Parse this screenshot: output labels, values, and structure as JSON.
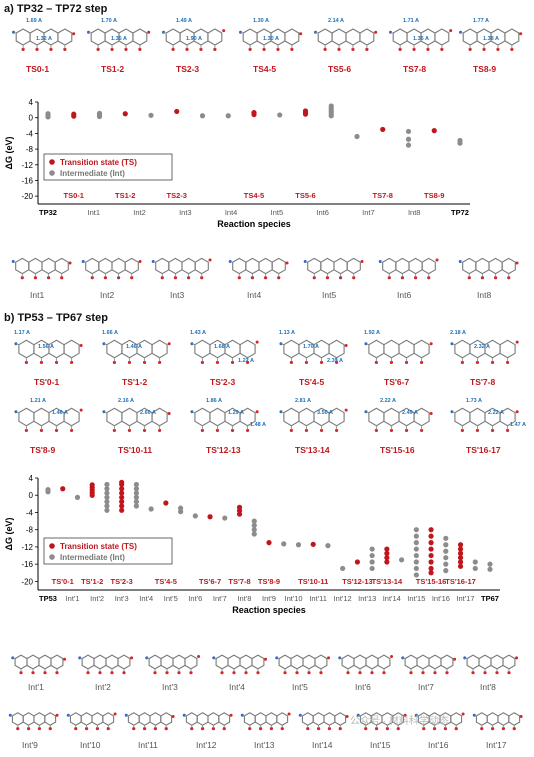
{
  "panel_a": {
    "title": "a) TP32 – TP72 step",
    "ts_row": [
      {
        "label": "TS0-1",
        "d": [
          "1.69 A",
          "1.32 A"
        ]
      },
      {
        "label": "TS1-2",
        "d": [
          "1.70 A",
          "1.35 A"
        ]
      },
      {
        "label": "TS2-3",
        "d": [
          "1.49 A",
          "1.90 A"
        ]
      },
      {
        "label": "TS4-5",
        "d": [
          "1.30 A",
          "1.30 A"
        ]
      },
      {
        "label": "TS5-6",
        "d": [
          "2.14 A"
        ]
      },
      {
        "label": "TS7-8",
        "d": [
          "1.71 A",
          "1.36 A"
        ]
      },
      {
        "label": "TS8-9",
        "d": [
          "1.77 A",
          "1.38 A"
        ]
      }
    ],
    "int_row": [
      "Int1",
      "Int2",
      "Int3",
      "Int4",
      "Int5",
      "Int6",
      "Int8"
    ]
  },
  "panel_b": {
    "title": "b) TP53 – TP67 step",
    "ts_row1": [
      {
        "label": "TS'0-1",
        "d": [
          "1.17 A",
          "1.56 A"
        ]
      },
      {
        "label": "TS'1-2",
        "d": [
          "1.66 A",
          "1.46 A"
        ]
      },
      {
        "label": "TS'2-3",
        "d": [
          "1.43 A",
          "1.68 A",
          "1.22 A"
        ]
      },
      {
        "label": "TS'4-5",
        "d": [
          "1.13 A",
          "1.70 A",
          "2.39 A"
        ]
      },
      {
        "label": "TS'6-7",
        "d": [
          "1.92 A"
        ]
      },
      {
        "label": "TS'7-8",
        "d": [
          "2.18 A",
          "2.32 A"
        ]
      }
    ],
    "ts_row2": [
      {
        "label": "TS'8-9",
        "d": [
          "1.21 A",
          "1.46 A"
        ]
      },
      {
        "label": "TS'10-11",
        "d": [
          "2.16 A",
          "2.60 A"
        ]
      },
      {
        "label": "TS'12-13",
        "d": [
          "1.86 A",
          "1.29 A",
          "1.48 A"
        ]
      },
      {
        "label": "TS'13-14",
        "d": [
          "2.81 A",
          "3.50 A"
        ]
      },
      {
        "label": "TS'15-16",
        "d": [
          "2.22 A",
          "2.49 A"
        ]
      },
      {
        "label": "TS'16-17",
        "d": [
          "1.73 A",
          "2.22 A",
          "1.47 A"
        ]
      }
    ],
    "int_row1": [
      "Int'1",
      "Int'2",
      "Int'3",
      "Int'4",
      "Int'5",
      "Int'6",
      "Int'7",
      "Int'8"
    ],
    "int_row2": [
      "Int'9",
      "Int'10",
      "Int'11",
      "Int'12",
      "Int'13",
      "Int'14",
      "Int'15",
      "Int'16",
      "Int'17"
    ]
  },
  "chart_data": [
    {
      "type": "scatter",
      "ylabel": "ΔG (eV)",
      "xlabel": "Reaction species",
      "ylim": [
        -22,
        4
      ],
      "yticks": [
        4,
        0,
        -4,
        -8,
        -12,
        -16,
        -20
      ],
      "legend": {
        "placement": "bottom-left",
        "ts": "Transition state (TS)",
        "int": "Intermediate (Int)"
      },
      "colors": {
        "ts": "#c0161b",
        "int": "#8c8c8c"
      },
      "ts_x_labels": [
        "TS0-1",
        "TS1-2",
        "TS2-3",
        "TS4-5",
        "TS5-6",
        "TS7-8",
        "TS8-9"
      ],
      "x_labels": [
        "TP32",
        "Int1",
        "Int2",
        "Int3",
        "Int4",
        "Int5",
        "Int6",
        "Int7",
        "Int8",
        "TP72"
      ],
      "points": [
        {
          "kind": "int",
          "x": 0,
          "y": [
            0.2,
            0.6,
            1.0
          ]
        },
        {
          "kind": "ts",
          "x": 1,
          "y": [
            0.4,
            0.9
          ]
        },
        {
          "kind": "int",
          "x": 2,
          "y": [
            0.3,
            0.7,
            1.1
          ]
        },
        {
          "kind": "ts",
          "x": 3,
          "y": [
            1.0
          ]
        },
        {
          "kind": "int",
          "x": 4,
          "y": [
            0.6
          ]
        },
        {
          "kind": "ts",
          "x": 5,
          "y": [
            1.6
          ]
        },
        {
          "kind": "int",
          "x": 6,
          "y": [
            0.5
          ]
        },
        {
          "kind": "int",
          "x": 7,
          "y": [
            0.5
          ]
        },
        {
          "kind": "ts",
          "x": 8,
          "y": [
            0.8,
            1.3
          ]
        },
        {
          "kind": "int",
          "x": 9,
          "y": [
            0.7
          ]
        },
        {
          "kind": "ts",
          "x": 10,
          "y": [
            0.9,
            1.3,
            1.7
          ]
        },
        {
          "kind": "int",
          "x": 11,
          "y": [
            0.5,
            1.0,
            1.5,
            2.0,
            2.5,
            3.0
          ]
        },
        {
          "kind": "int",
          "x": 12,
          "y": [
            -4.8
          ]
        },
        {
          "kind": "ts",
          "x": 13,
          "y": [
            -3.0
          ]
        },
        {
          "kind": "int",
          "x": 14,
          "y": [
            -3.5,
            -5.5,
            -7.0
          ]
        },
        {
          "kind": "ts",
          "x": 15,
          "y": [
            -3.3
          ]
        },
        {
          "kind": "int",
          "x": 16,
          "y": [
            -5.8,
            -6.5
          ]
        }
      ]
    },
    {
      "type": "scatter",
      "ylabel": "ΔG (eV)",
      "xlabel": "Reaction species",
      "ylim": [
        -22,
        4
      ],
      "yticks": [
        4,
        0,
        -4,
        -8,
        -12,
        -16,
        -20
      ],
      "legend": {
        "placement": "center-left",
        "ts": "Transition state (TS)",
        "int": "Intermediate (Int)"
      },
      "colors": {
        "ts": "#c0161b",
        "int": "#8c8c8c"
      },
      "ts_x_labels": [
        "TS'0-1",
        "TS'1-2",
        "TS'2-3",
        "TS'4-5",
        "TS'6-7",
        "TS'7-8",
        "TS'8-9",
        "TS'10-11",
        "TS'12-13",
        "TS'13-14",
        "TS'15-16",
        "TS'16-17"
      ],
      "x_labels": [
        "TP53",
        "Int'1",
        "Int'2",
        "Int'3",
        "Int'4",
        "Int'5",
        "Int'6",
        "Int'7",
        "Int'8",
        "Int'9",
        "Int'10",
        "Int'11",
        "Int'12",
        "Int'13",
        "Int'14",
        "Int'15",
        "Int'16",
        "Int'17",
        "TP67"
      ],
      "points": [
        {
          "kind": "int",
          "x": 0,
          "y": [
            0.8,
            1.3
          ]
        },
        {
          "kind": "ts",
          "x": 1,
          "y": [
            1.5
          ]
        },
        {
          "kind": "int",
          "x": 2,
          "y": [
            -0.5
          ]
        },
        {
          "kind": "ts",
          "x": 3,
          "y": [
            0.0,
            0.6,
            1.2,
            1.8,
            2.4
          ]
        },
        {
          "kind": "int",
          "x": 4,
          "y": [
            -3.5,
            -2.5,
            -1.5,
            -0.5,
            0.5,
            1.5,
            2.5
          ]
        },
        {
          "kind": "ts",
          "x": 5,
          "y": [
            -3.5,
            -2.5,
            -1.5,
            -0.5,
            0.5,
            1.5,
            2.5,
            3.0
          ]
        },
        {
          "kind": "int",
          "x": 6,
          "y": [
            -2.5,
            -1.5,
            -0.5,
            0.5,
            1.5,
            2.5
          ]
        },
        {
          "kind": "int",
          "x": 7,
          "y": [
            -3.2
          ]
        },
        {
          "kind": "ts",
          "x": 8,
          "y": [
            -1.8
          ]
        },
        {
          "kind": "int",
          "x": 9,
          "y": [
            -3.0,
            -3.8
          ]
        },
        {
          "kind": "int",
          "x": 10,
          "y": [
            -4.8
          ]
        },
        {
          "kind": "ts",
          "x": 11,
          "y": [
            -5.0
          ]
        },
        {
          "kind": "int",
          "x": 12,
          "y": [
            -5.3
          ]
        },
        {
          "kind": "ts",
          "x": 13,
          "y": [
            -2.8,
            -3.6,
            -4.4
          ]
        },
        {
          "kind": "int",
          "x": 14,
          "y": [
            -6.0,
            -7.0,
            -8.0,
            -9.0
          ]
        },
        {
          "kind": "ts",
          "x": 15,
          "y": [
            -11.0
          ]
        },
        {
          "kind": "int",
          "x": 16,
          "y": [
            -11.3
          ]
        },
        {
          "kind": "int",
          "x": 17,
          "y": [
            -11.5
          ]
        },
        {
          "kind": "ts",
          "x": 18,
          "y": [
            -11.4
          ]
        },
        {
          "kind": "int",
          "x": 19,
          "y": [
            -11.7
          ]
        },
        {
          "kind": "int",
          "x": 20,
          "y": [
            -17.0
          ]
        },
        {
          "kind": "ts",
          "x": 21,
          "y": [
            -15.5
          ]
        },
        {
          "kind": "int",
          "x": 22,
          "y": [
            -12.5,
            -14.0,
            -15.5,
            -17.0
          ]
        },
        {
          "kind": "ts",
          "x": 23,
          "y": [
            -12.5,
            -13.5,
            -14.5,
            -15.5
          ]
        },
        {
          "kind": "int",
          "x": 24,
          "y": [
            -15.0
          ]
        },
        {
          "kind": "int",
          "x": 25,
          "y": [
            -8.0,
            -9.5,
            -11.0,
            -12.5,
            -14.0,
            -15.5,
            -17.0,
            -18.5
          ]
        },
        {
          "kind": "ts",
          "x": 26,
          "y": [
            -8.0,
            -9.5,
            -11.0,
            -12.5,
            -14.0,
            -15.5,
            -17.0,
            -18.0
          ]
        },
        {
          "kind": "int",
          "x": 27,
          "y": [
            -10.0,
            -11.5,
            -13.0,
            -14.5,
            -16.0,
            -17.5
          ]
        },
        {
          "kind": "ts",
          "x": 28,
          "y": [
            -11.5,
            -12.5,
            -13.5,
            -14.5,
            -15.5,
            -16.5
          ]
        },
        {
          "kind": "int",
          "x": 29,
          "y": [
            -15.5,
            -17.0
          ]
        },
        {
          "kind": "int",
          "x": 30,
          "y": [
            -16.0,
            -17.2
          ]
        }
      ]
    }
  ],
  "watermark": "公众号 · 材料科学动态"
}
